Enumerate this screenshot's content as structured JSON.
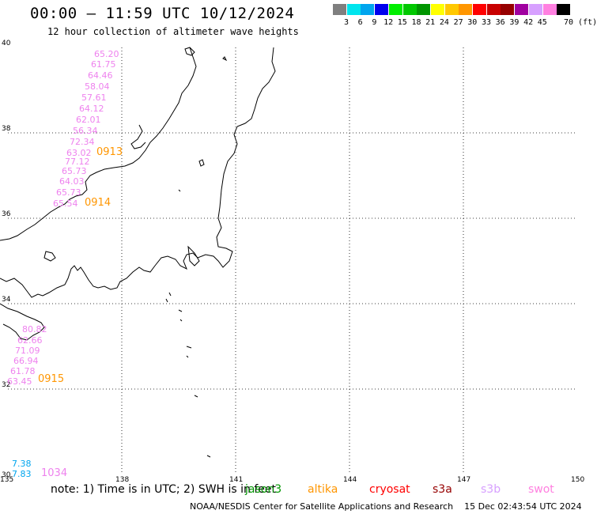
{
  "header": {
    "title": "00:00 – 11:59 UTC 10/12/2024",
    "subtitle": "12 hour collection of altimeter wave heights"
  },
  "colorbar": {
    "unit": "70 (ft)",
    "labels": [
      "3",
      "6",
      "9",
      "12",
      "15",
      "18",
      "21",
      "24",
      "27",
      "30",
      "33",
      "36",
      "39",
      "42",
      "45"
    ],
    "colors": [
      "#7f7f7f",
      "#00e5ee",
      "#00a5ee",
      "#0000ee",
      "#00ee00",
      "#00c800",
      "#009600",
      "#ffff00",
      "#ffc800",
      "#ff9600",
      "#ff0000",
      "#c80000",
      "#960000",
      "#a000a0",
      "#d7a0ff",
      "#ff80e0",
      "#000000"
    ]
  },
  "axes": {
    "lon_labels": [
      "135",
      "138",
      "141",
      "144",
      "147",
      "150"
    ],
    "lat_labels": [
      "40",
      "38",
      "36",
      "34",
      "32",
      "30"
    ]
  },
  "map_data": {
    "lat_range": [
      30,
      40
    ],
    "lon_range": [
      135,
      150
    ],
    "track_values": [
      {
        "text": "65.20",
        "color": "#ee82ee"
      },
      {
        "text": "61.75",
        "color": "#ee82ee"
      },
      {
        "text": "64.46",
        "color": "#ee82ee"
      },
      {
        "text": "58.04",
        "color": "#ee82ee"
      },
      {
        "text": "57.61",
        "color": "#ee82ee"
      },
      {
        "text": "64.12",
        "color": "#ee82ee"
      },
      {
        "text": "62.01",
        "color": "#ee82ee"
      },
      {
        "text": "56.34",
        "color": "#ee82ee"
      },
      {
        "text": "72.34",
        "color": "#ee82ee"
      },
      {
        "text": "63.02",
        "color": "#ee82ee"
      },
      {
        "text": "77.12",
        "color": "#ee82ee"
      },
      {
        "text": "65.73",
        "color": "#ee82ee"
      },
      {
        "text": "64.03",
        "color": "#ee82ee"
      },
      {
        "text": "65.73",
        "color": "#ee82ee"
      },
      {
        "text": "65.54",
        "color": "#ee82ee"
      },
      {
        "text": "80.82",
        "color": "#ee82ee"
      },
      {
        "text": "62.66",
        "color": "#ee82ee"
      },
      {
        "text": "71.09",
        "color": "#ee82ee"
      },
      {
        "text": "66.94",
        "color": "#ee82ee"
      },
      {
        "text": "61.78",
        "color": "#ee82ee"
      },
      {
        "text": "63.45",
        "color": "#ee82ee"
      },
      {
        "text": "7.38",
        "color": "#00a5ee"
      },
      {
        "text": "7.83",
        "color": "#00a5ee"
      }
    ],
    "time_labels": [
      {
        "text": "0913",
        "color": "#ff9600"
      },
      {
        "text": "0914",
        "color": "#ff9600"
      },
      {
        "text": "0915",
        "color": "#ff9600"
      },
      {
        "text": "1034",
        "color": "#ee82ee"
      }
    ]
  },
  "footer": {
    "note": "note: 1) Time is in UTC; 2) SWH is in feet",
    "satellites": [
      {
        "name": "jason3",
        "color": "#009600"
      },
      {
        "name": "altika",
        "color": "#ff9600"
      },
      {
        "name": "cryosat",
        "color": "#ff0000"
      },
      {
        "name": "s3a",
        "color": "#960000"
      },
      {
        "name": "s3b",
        "color": "#d7a0ff"
      },
      {
        "name": "swot",
        "color": "#ff80e0"
      }
    ],
    "credit": "NOAA/NESDIS Center for Satellite Applications and Research",
    "timestamp": "15 Dec 02:43:54 UTC 2024"
  }
}
